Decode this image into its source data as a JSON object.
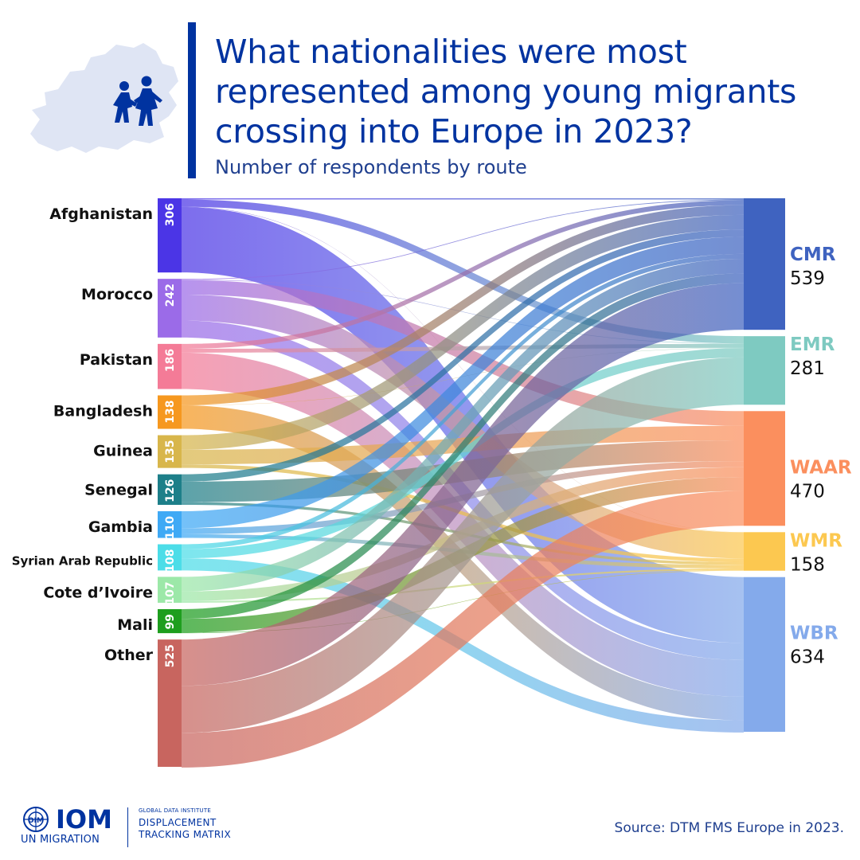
{
  "header": {
    "title": "What nationalities were most represented among young migrants crossing into Europe in 2023?",
    "subtitle": "Number of respondents by route",
    "icon": "europe-map-children-icon"
  },
  "footer": {
    "source": "Source:  DTM FMS Europe in 2023.",
    "logo": {
      "main": "IOM",
      "sub": "UN MIGRATION",
      "gdi": "GLOBAL DATA INSTITUTE",
      "dtm_line1": "DISPLACEMENT",
      "dtm_line2": "TRACKING MATRIX"
    }
  },
  "colors": {
    "accent": "#0033a0"
  },
  "chart_data": {
    "type": "sankey",
    "title": "What nationalities were most represented among young migrants crossing into Europe in 2023?",
    "subtitle": "Number of respondents by route",
    "sources": [
      {
        "name": "Afghanistan",
        "value": 306,
        "color": "#4b35e6"
      },
      {
        "name": "Morocco",
        "value": 242,
        "color": "#9b6be8"
      },
      {
        "name": "Pakistan",
        "value": 186,
        "color": "#f47b97"
      },
      {
        "name": "Bangladesh",
        "value": 138,
        "color": "#f6981f"
      },
      {
        "name": "Guinea",
        "value": 135,
        "color": "#d8b64b"
      },
      {
        "name": "Senegal",
        "value": 126,
        "color": "#1d7f89"
      },
      {
        "name": "Gambia",
        "value": 110,
        "color": "#3fa9f5"
      },
      {
        "name": "Syrian Arab Republic",
        "value": 108,
        "color": "#4cdde8"
      },
      {
        "name": "Cote d’Ivoire",
        "value": 107,
        "color": "#9ce8a8"
      },
      {
        "name": "Mali",
        "value": 99,
        "color": "#1e9e1e"
      },
      {
        "name": "Other",
        "value": 525,
        "color": "#c8655f"
      }
    ],
    "targets": [
      {
        "name": "CMR",
        "value": 539,
        "color": "#3f63c0"
      },
      {
        "name": "EMR",
        "value": 281,
        "color": "#7ecac1"
      },
      {
        "name": "WAAR",
        "value": 470,
        "color": "#fb8f5e"
      },
      {
        "name": "WMR",
        "value": 158,
        "color": "#fcc850"
      },
      {
        "name": "WBR",
        "value": 634,
        "color": "#84aaeb"
      }
    ],
    "links": [
      {
        "source": "Afghanistan",
        "target": "CMR",
        "value": 5
      },
      {
        "source": "Afghanistan",
        "target": "EMR",
        "value": 30
      },
      {
        "source": "Afghanistan",
        "target": "WMR",
        "value": 1
      },
      {
        "source": "Afghanistan",
        "target": "WBR",
        "value": 270
      },
      {
        "source": "Morocco",
        "target": "CMR",
        "value": 3
      },
      {
        "source": "Morocco",
        "target": "EMR",
        "value": 2
      },
      {
        "source": "Morocco",
        "target": "WAAR",
        "value": 60
      },
      {
        "source": "Morocco",
        "target": "WMR",
        "value": 107
      },
      {
        "source": "Morocco",
        "target": "WBR",
        "value": 70
      },
      {
        "source": "Pakistan",
        "target": "CMR",
        "value": 20
      },
      {
        "source": "Pakistan",
        "target": "EMR",
        "value": 16
      },
      {
        "source": "Pakistan",
        "target": "WBR",
        "value": 150
      },
      {
        "source": "Bangladesh",
        "target": "CMR",
        "value": 40
      },
      {
        "source": "Bangladesh",
        "target": "EMR",
        "value": 1
      },
      {
        "source": "Bangladesh",
        "target": "WBR",
        "value": 97
      },
      {
        "source": "Guinea",
        "target": "CMR",
        "value": 60
      },
      {
        "source": "Guinea",
        "target": "WAAR",
        "value": 60
      },
      {
        "source": "Guinea",
        "target": "WMR",
        "value": 15
      },
      {
        "source": "Senegal",
        "target": "CMR",
        "value": 30
      },
      {
        "source": "Senegal",
        "target": "WAAR",
        "value": 85
      },
      {
        "source": "Senegal",
        "target": "WMR",
        "value": 11
      },
      {
        "source": "Gambia",
        "target": "CMR",
        "value": 70
      },
      {
        "source": "Gambia",
        "target": "WAAR",
        "value": 25
      },
      {
        "source": "Gambia",
        "target": "WMR",
        "value": 15
      },
      {
        "source": "Syrian Arab Republic",
        "target": "CMR",
        "value": 20
      },
      {
        "source": "Syrian Arab Republic",
        "target": "EMR",
        "value": 38
      },
      {
        "source": "Syrian Arab Republic",
        "target": "WBR",
        "value": 50
      },
      {
        "source": "Cote d’Ivoire",
        "target": "CMR",
        "value": 60
      },
      {
        "source": "Cote d’Ivoire",
        "target": "WAAR",
        "value": 40
      },
      {
        "source": "Cote d’Ivoire",
        "target": "WMR",
        "value": 7
      },
      {
        "source": "Mali",
        "target": "CMR",
        "value": 40
      },
      {
        "source": "Mali",
        "target": "WAAR",
        "value": 57
      },
      {
        "source": "Mali",
        "target": "WMR",
        "value": 2
      },
      {
        "source": "Other",
        "target": "CMR",
        "value": 191
      },
      {
        "source": "Other",
        "target": "EMR",
        "value": 194
      },
      {
        "source": "Other",
        "target": "WAAR",
        "value": 143
      },
      {
        "source": "Other",
        "target": "WBR",
        "value": -3
      }
    ]
  }
}
